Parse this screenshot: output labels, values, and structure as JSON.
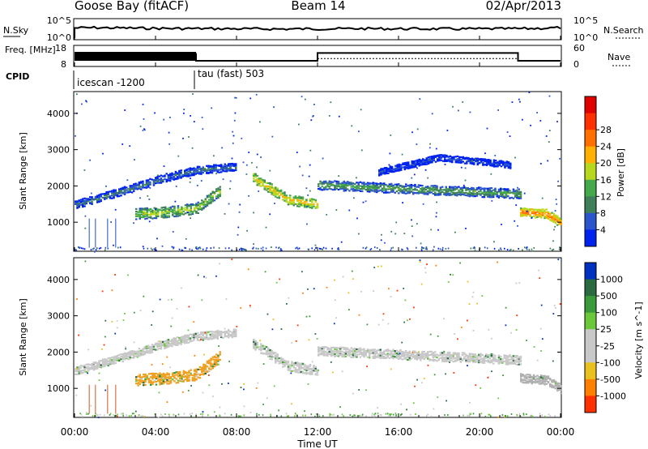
{
  "header": {
    "station": "Goose Bay (fitACF)",
    "beam": "Beam 14",
    "date": "02/Apr/2013"
  },
  "chart_data": [
    {
      "type": "line",
      "panel": "noise",
      "left_label": "N.Sky",
      "right_label": "N.Search",
      "left_ticks": [
        "10^5",
        "10^0"
      ],
      "right_ticks": [
        "10^5",
        "10^0"
      ],
      "y_scale": "log",
      "ylim": [
        1,
        100000
      ],
      "series": [
        {
          "values": [
            5000,
            6000,
            5000,
            4000,
            3500,
            3000,
            2800,
            2500,
            2300,
            2200,
            2000,
            2100,
            2300,
            2500,
            2800,
            2600,
            2400,
            2300,
            2200,
            2100,
            2200,
            2400,
            2600,
            3500,
            6000
          ]
        }
      ]
    },
    {
      "type": "line",
      "panel": "frequency",
      "left_label": "Freq. [MHz]",
      "right_label": "Nave",
      "left_ticks": [
        "18",
        "8"
      ],
      "right_ticks": [
        "60",
        "0"
      ],
      "series": [
        {
          "name": "Freq",
          "x_hours": [
            0,
            6.0,
            6.0,
            12.0,
            12.0,
            21.9,
            21.9,
            24.0
          ],
          "values": [
            14,
            14,
            10.5,
            10.5,
            14.5,
            14.5,
            10.5,
            10.5
          ]
        },
        {
          "name": "Nave",
          "x_hours": [
            12.0,
            21.9
          ],
          "values": [
            22,
            22
          ]
        }
      ]
    },
    {
      "type": "table",
      "panel": "cpid",
      "label": "CPID",
      "segments": [
        {
          "start_hour": 0,
          "text": "icescan -1200"
        },
        {
          "start_hour": 6.0,
          "text": "tau (fast) 503"
        }
      ]
    },
    {
      "type": "heatmap",
      "panel": "power",
      "ylabel": "Slant Range [km]",
      "yticks": [
        "1000",
        "2000",
        "3000",
        "4000"
      ],
      "ylim": [
        200,
        4600
      ],
      "colorbar_label": "Power [dB]",
      "colorbar_ticks": [
        "4",
        "8",
        "12",
        "16",
        "20",
        "24",
        "28"
      ],
      "colors": [
        "#0022ee",
        "#2b55cc",
        "#3f7f5a",
        "#45a84a",
        "#b8d820",
        "#ffb000",
        "#ff7000",
        "#ff3000",
        "#e00000"
      ],
      "bands": [
        {
          "hours": [
            0.0,
            2.5,
            4.5,
            6.0,
            8.0
          ],
          "ranges": [
            1500,
            1900,
            2250,
            2450,
            2550
          ],
          "width": 220,
          "level": 2
        },
        {
          "hours": [
            3.0,
            4.5,
            6.0,
            7.2
          ],
          "ranges": [
            1250,
            1300,
            1400,
            1900
          ],
          "width": 300,
          "level": 4
        },
        {
          "hours": [
            8.8,
            10.5,
            12.0
          ],
          "ranges": [
            2250,
            1650,
            1500
          ],
          "width": 280,
          "level": 5
        },
        {
          "hours": [
            12.0,
            16.0,
            20.0,
            22.0
          ],
          "ranges": [
            2050,
            1950,
            1850,
            1800
          ],
          "width": 260,
          "level": 3
        },
        {
          "hours": [
            15.0,
            18.0,
            21.5
          ],
          "ranges": [
            2400,
            2800,
            2600
          ],
          "width": 180,
          "level": 1
        },
        {
          "hours": [
            22.0,
            23.3,
            24.0
          ],
          "ranges": [
            1300,
            1250,
            1000
          ],
          "width": 250,
          "level": 6
        }
      ]
    },
    {
      "type": "heatmap",
      "panel": "velocity",
      "ylabel": "Slant Range [km]",
      "yticks": [
        "1000",
        "2000",
        "3000",
        "4000"
      ],
      "ylim": [
        200,
        4600
      ],
      "colorbar_label": "Velocity [m s^-1]",
      "colorbar_ticks": [
        "1000",
        "500",
        "100",
        "25",
        "-25",
        "-100",
        "-500",
        "-1000"
      ],
      "colors": [
        "#0030c0",
        "#2a6a40",
        "#3a9a3a",
        "#6ac83a",
        "#c8c8c8",
        "#c8c8c8",
        "#e8c020",
        "#ff8000",
        "#ff3000"
      ],
      "bands": [
        {
          "hours": [
            0.0,
            2.5,
            4.5,
            6.0,
            8.0
          ],
          "ranges": [
            1500,
            1900,
            2250,
            2450,
            2550
          ],
          "width": 220,
          "color": "#c8c8c8"
        },
        {
          "hours": [
            3.0,
            4.5,
            6.0,
            7.2
          ],
          "ranges": [
            1250,
            1300,
            1400,
            1900
          ],
          "width": 320,
          "color": "#f0a020"
        },
        {
          "hours": [
            8.8,
            10.5,
            12.0
          ],
          "ranges": [
            2250,
            1650,
            1500
          ],
          "width": 280,
          "color": "#c8c8c8"
        },
        {
          "hours": [
            12.0,
            16.0,
            20.0,
            22.0
          ],
          "ranges": [
            2050,
            1950,
            1850,
            1800
          ],
          "width": 260,
          "color": "#c8c8c8"
        },
        {
          "hours": [
            22.0,
            23.3,
            24.0
          ],
          "ranges": [
            1300,
            1250,
            1000
          ],
          "width": 250,
          "color": "#b0b0b0"
        }
      ]
    }
  ],
  "x_axis": {
    "label": "Time UT",
    "ticks": [
      "00:00",
      "04:00",
      "08:00",
      "12:00",
      "16:00",
      "20:00",
      "00:00"
    ],
    "xlim_hours": [
      0,
      24
    ]
  }
}
